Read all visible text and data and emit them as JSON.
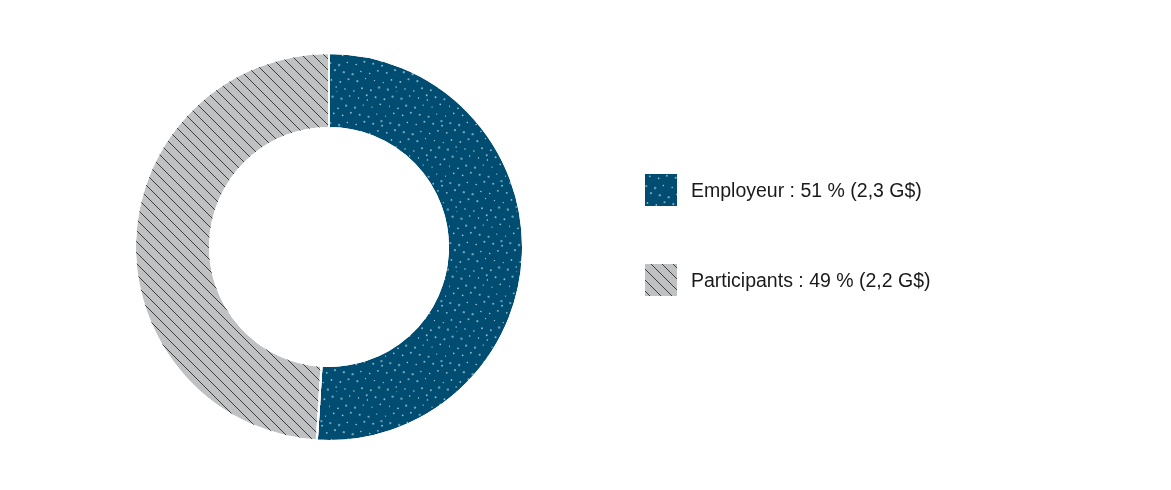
{
  "chart_data": {
    "type": "donut",
    "categories": [
      "Employeur : 51 % (2,3 G$)",
      "Participants : 49 % (2,2 G$)"
    ],
    "values": [
      51,
      49
    ],
    "colors": [
      "#004d71",
      "#c0c1c3"
    ],
    "legend": "right"
  }
}
